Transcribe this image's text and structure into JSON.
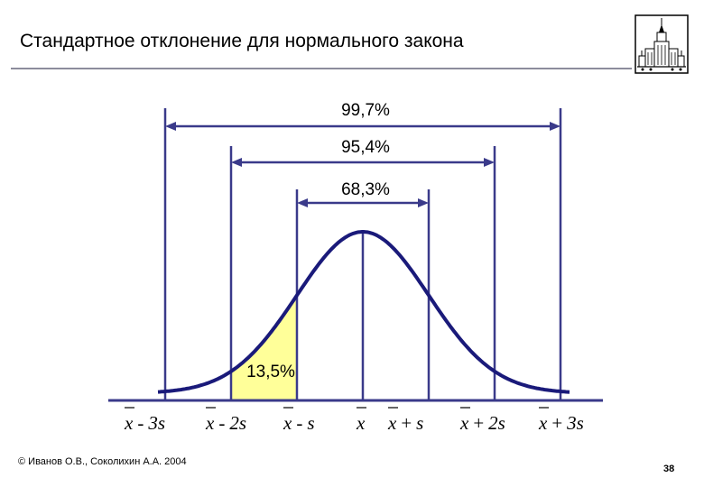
{
  "header": {
    "title": "Стандартное отклонение для нормального закона"
  },
  "footer": {
    "copyright": "© Иванов О.В., Соколихин А.А. 2004",
    "page_number": "38"
  },
  "logo": {
    "icon": "university-building-icon"
  },
  "diagram": {
    "intervals": [
      {
        "label": "99,7%"
      },
      {
        "label": "95,4%"
      },
      {
        "label": "68,3%"
      }
    ],
    "shaded_region": {
      "label": "13,5%",
      "color": "#ffff99"
    },
    "curve_color": "#1a1a7a",
    "line_color": "#3a3a8a",
    "axis_labels": [
      {
        "var": "x",
        "op": "-",
        "term": "3s"
      },
      {
        "var": "x",
        "op": "-",
        "term": "2s"
      },
      {
        "var": "x",
        "op": "-",
        "term": "s"
      },
      {
        "var": "x",
        "op": "",
        "term": ""
      },
      {
        "var": "x",
        "op": "+",
        "term": "s"
      },
      {
        "var": "x",
        "op": "+",
        "term": "2s"
      },
      {
        "var": "x",
        "op": "+",
        "term": "3s"
      }
    ]
  }
}
